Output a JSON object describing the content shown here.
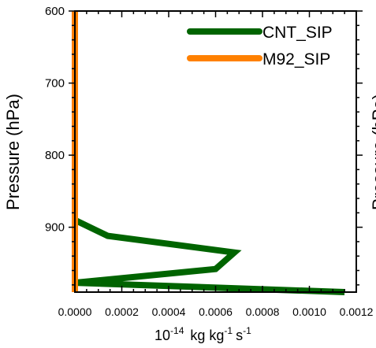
{
  "chart_data": {
    "type": "line",
    "orientation": "vertical-profile",
    "xlabel_base": "10",
    "xlabel_exp": "-14",
    "xlabel_units": "kg kg",
    "xlabel_units_exp1": "-1",
    "xlabel_units_s": "s",
    "xlabel_units_exp2": "-1",
    "ylabel": "Pressure (hPa)",
    "ylabel_right_partial": "Pressure (hPa)",
    "xlim": [
      0,
      0.0012
    ],
    "ylim": [
      600,
      990
    ],
    "y_inverted": true,
    "x_ticks": [
      {
        "v": 0,
        "label": "0.0000"
      },
      {
        "v": 0.0002,
        "label": "0.0002"
      },
      {
        "v": 0.0004,
        "label": "0.0004"
      },
      {
        "v": 0.0006,
        "label": "0.0006"
      },
      {
        "v": 0.0008,
        "label": "0.0008"
      },
      {
        "v": 0.001,
        "label": "0.0010"
      },
      {
        "v": 0.0012,
        "label": "0.0012"
      }
    ],
    "y_ticks": [
      {
        "v": 600,
        "label": "600"
      },
      {
        "v": 700,
        "label": "700"
      },
      {
        "v": 800,
        "label": "800"
      },
      {
        "v": 900,
        "label": "900"
      }
    ],
    "legend_position": "top-right",
    "series": [
      {
        "name": "CNT_SIP",
        "color": "#006400",
        "x": [
          0,
          0,
          0.00014,
          0.00068,
          0.0006,
          0,
          0.00115
        ],
        "y": [
          600,
          890,
          912,
          935,
          958,
          977,
          990
        ]
      },
      {
        "name": "M92_SIP",
        "color": "#ff8000",
        "x": [
          0,
          0
        ],
        "y": [
          600,
          990
        ]
      }
    ]
  }
}
